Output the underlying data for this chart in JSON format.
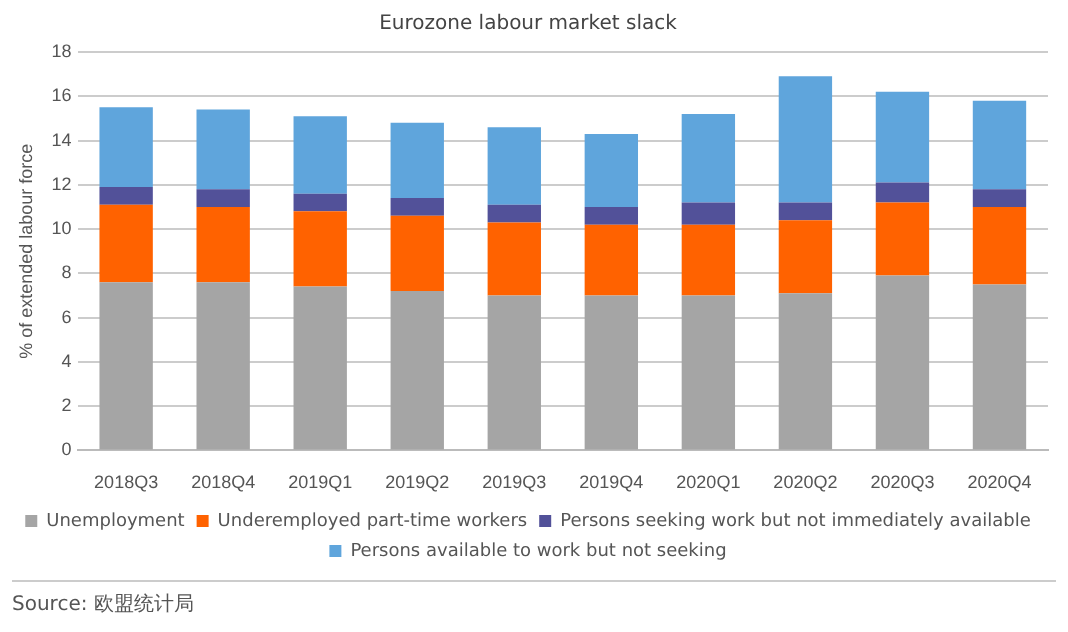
{
  "chart_data": {
    "type": "bar",
    "title": "Eurozone labour market slack",
    "ylabel": "% of extended labour force",
    "categories": [
      "2018Q3",
      "2018Q4",
      "2019Q1",
      "2019Q2",
      "2019Q3",
      "2019Q4",
      "2020Q1",
      "2020Q2",
      "2020Q3",
      "2020Q4"
    ],
    "series": [
      {
        "name": "Unemployment",
        "color": "#a5a5a5",
        "values": [
          7.6,
          7.6,
          7.4,
          7.2,
          7.0,
          7.0,
          7.0,
          7.1,
          7.9,
          7.5
        ]
      },
      {
        "name": "Underemployed part-time workers",
        "color": "#ff6200",
        "values": [
          3.5,
          3.4,
          3.4,
          3.4,
          3.3,
          3.2,
          3.2,
          3.3,
          3.3,
          3.5
        ]
      },
      {
        "name": "Persons seeking work but not immediately available",
        "color": "#525199",
        "values": [
          0.8,
          0.8,
          0.8,
          0.8,
          0.8,
          0.8,
          1.0,
          0.8,
          0.9,
          0.8
        ]
      },
      {
        "name": "Persons available to work but not seeking",
        "color": "#5fa5dc",
        "values": [
          3.6,
          3.6,
          3.5,
          3.4,
          3.5,
          3.3,
          4.0,
          5.7,
          4.1,
          4.0
        ]
      }
    ],
    "stacked": true,
    "ylim": [
      0,
      18
    ],
    "yticks": [
      0,
      2,
      4,
      6,
      8,
      10,
      12,
      14,
      16,
      18
    ],
    "grid": "y",
    "legend": "bottom",
    "annotations": [
      "Source: 欧盟统计局"
    ]
  }
}
